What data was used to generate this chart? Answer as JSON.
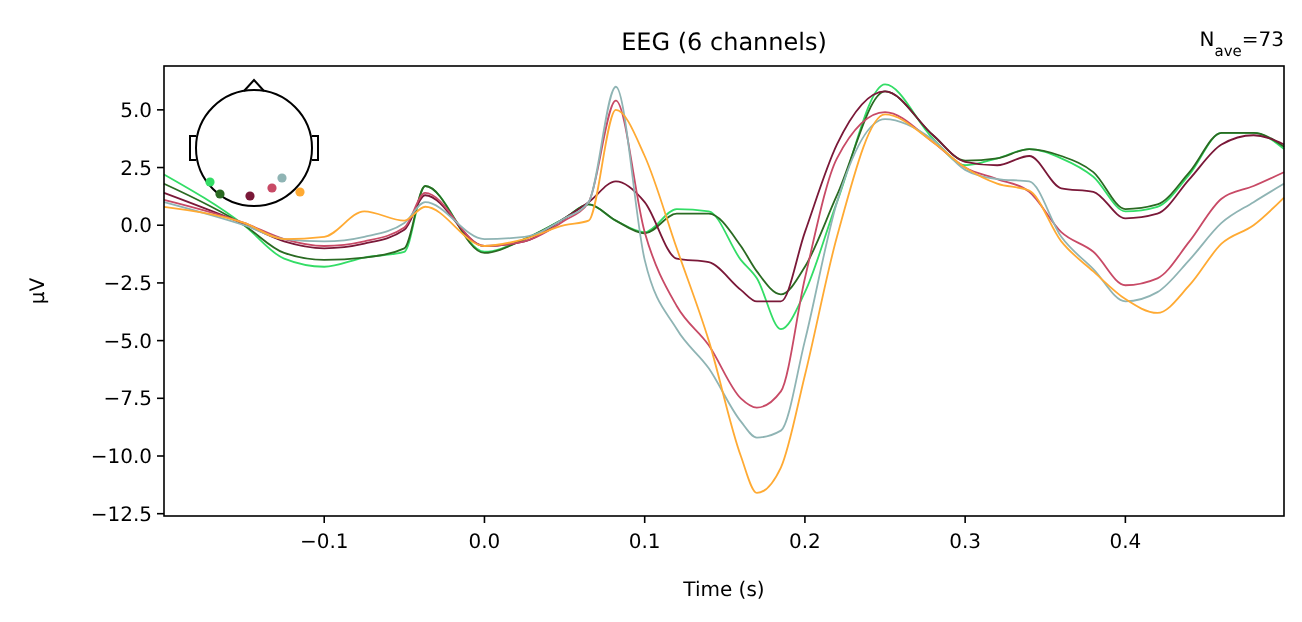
{
  "chart_data": {
    "type": "line",
    "title": "EEG (6 channels)",
    "xlabel": "Time (s)",
    "ylabel": "µV",
    "annotations": [
      "N$_{ave}$=73"
    ],
    "x": [
      -0.2,
      -0.15,
      -0.125,
      -0.1,
      -0.075,
      -0.05,
      -0.037,
      0,
      0.025,
      0.05,
      0.065,
      0.082,
      0.1,
      0.12,
      0.14,
      0.16,
      0.17,
      0.185,
      0.2,
      0.22,
      0.25,
      0.28,
      0.3,
      0.32,
      0.34,
      0.36,
      0.38,
      0.4,
      0.42,
      0.44,
      0.46,
      0.48,
      0.499
    ],
    "series": [
      {
        "color": "#33dd66",
        "values": [
          2.2,
          0,
          -1.45,
          -1.8,
          -1.4,
          -1.15,
          1.7,
          -1.15,
          -0.6,
          0.3,
          0.9,
          0.2,
          -0.3,
          0.7,
          0.6,
          -1.5,
          -2.3,
          -4.5,
          -2.9,
          1.0,
          6.1,
          3.75,
          2.6,
          2.9,
          3.3,
          2.9,
          2.1,
          0.6,
          0.8,
          2.2,
          4.0,
          4.0,
          3.3
        ]
      },
      {
        "color": "#2a6a22",
        "values": [
          1.8,
          0,
          -1.2,
          -1.5,
          -1.4,
          -1.0,
          1.7,
          -1.2,
          -0.6,
          0.3,
          0.9,
          0.2,
          -0.35,
          0.5,
          0.5,
          -0.9,
          -2.0,
          -3.0,
          -1.8,
          1.3,
          5.8,
          3.9,
          2.8,
          2.9,
          3.3,
          3.0,
          2.3,
          0.7,
          0.9,
          2.3,
          4.0,
          4.0,
          3.4
        ]
      },
      {
        "color": "#7a1838",
        "values": [
          1.4,
          0.05,
          -0.7,
          -1.0,
          -0.8,
          -0.2,
          1.3,
          -0.9,
          -0.7,
          0.3,
          1.0,
          1.9,
          1.0,
          -1.45,
          -1.6,
          -2.8,
          -3.3,
          -3.3,
          -0.3,
          3.5,
          5.8,
          3.9,
          2.75,
          2.6,
          3.0,
          1.6,
          1.45,
          0.3,
          0.5,
          2.0,
          3.5,
          3.9,
          3.5
        ]
      },
      {
        "color": "#c84a66",
        "values": [
          1.1,
          0.1,
          -0.6,
          -0.9,
          -0.7,
          -0.1,
          1.4,
          -0.9,
          -0.7,
          0.2,
          1.0,
          5.4,
          -0.3,
          -3.5,
          -5.2,
          -7.5,
          -7.9,
          -7.2,
          -2.3,
          2.9,
          4.9,
          3.6,
          2.5,
          2.0,
          1.45,
          -0.3,
          -1.15,
          -2.6,
          -2.3,
          -0.7,
          1.15,
          1.7,
          2.3
        ]
      },
      {
        "color": "#8fb4b4",
        "values": [
          1.0,
          0.0,
          -0.6,
          -0.7,
          -0.5,
          0.1,
          1.0,
          -0.6,
          -0.5,
          0.3,
          1.0,
          6.0,
          -1.5,
          -4.5,
          -6.2,
          -8.5,
          -9.2,
          -8.9,
          -5.0,
          1.0,
          4.6,
          3.7,
          2.4,
          2.0,
          1.9,
          -0.5,
          -1.9,
          -3.3,
          -2.9,
          -1.5,
          0.1,
          1.0,
          1.8
        ]
      },
      {
        "color": "#ffaa33",
        "values": [
          0.8,
          0.1,
          -0.6,
          -0.5,
          0.6,
          0.2,
          0.8,
          -0.9,
          -0.6,
          0.0,
          0.2,
          5.0,
          3.0,
          -1.0,
          -5.0,
          -10.0,
          -11.6,
          -10.5,
          -6.5,
          -0.5,
          4.8,
          3.6,
          2.5,
          1.8,
          1.5,
          -0.7,
          -2.0,
          -3.2,
          -3.8,
          -2.6,
          -0.8,
          0.0,
          1.2
        ]
      }
    ],
    "xlim": [
      -0.2,
      0.499
    ],
    "ylim": [
      -12.6,
      6.9
    ],
    "xticks": [
      {
        "value": -0.1,
        "label": "−0.1"
      },
      {
        "value": 0,
        "label": "0.0"
      },
      {
        "value": 0.1,
        "label": "0.1"
      },
      {
        "value": 0.2,
        "label": "0.2"
      },
      {
        "value": 0.3,
        "label": "0.3"
      },
      {
        "value": 0.4,
        "label": "0.4"
      }
    ],
    "yticks": [
      {
        "value": 5,
        "label": "5.0"
      },
      {
        "value": 2.5,
        "label": "2.5"
      },
      {
        "value": 0,
        "label": "0.0"
      },
      {
        "value": -2.5,
        "label": "−2.5"
      },
      {
        "value": -5,
        "label": "−5.0"
      },
      {
        "value": -7.5,
        "label": "−7.5"
      },
      {
        "value": -10,
        "label": "−10.0"
      },
      {
        "value": -12.5,
        "label": "−12.5"
      }
    ],
    "grid": false,
    "line_style": "solid"
  }
}
